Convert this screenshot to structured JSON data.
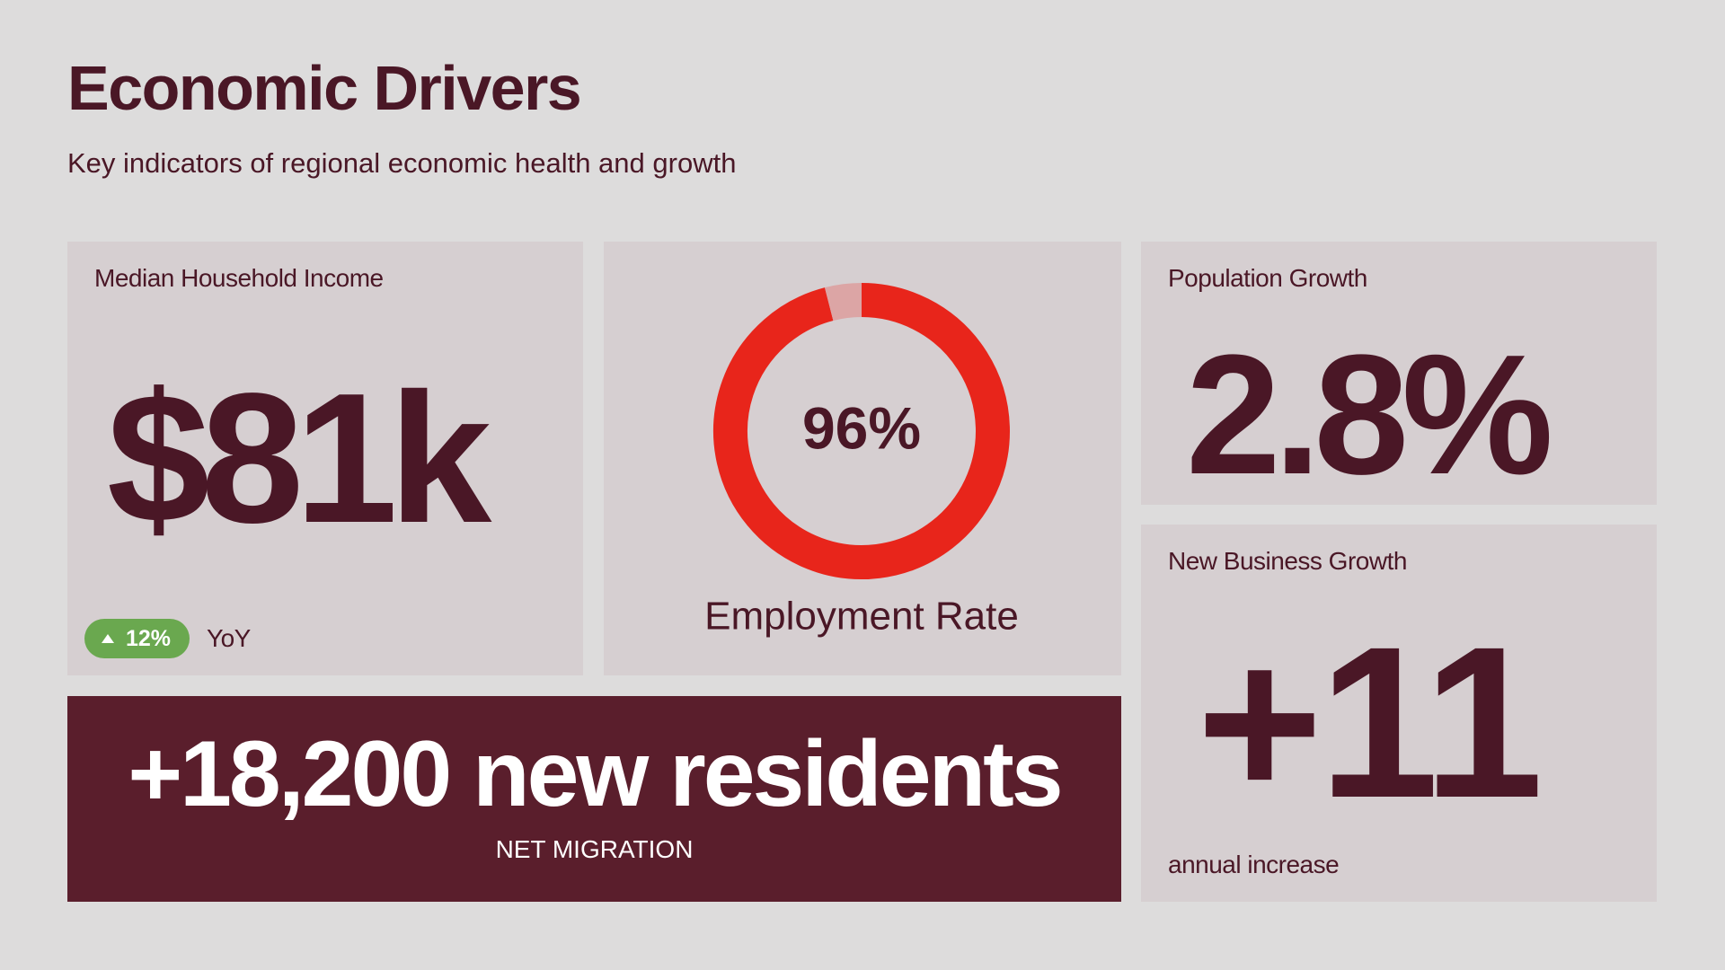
{
  "header": {
    "title": "Economic Drivers",
    "subtitle": "Key indicators of regional economic health and growth"
  },
  "income": {
    "label": "Median Household Income",
    "value_text": "$81k",
    "change": "12%",
    "change_period": "YoY"
  },
  "employment": {
    "label": "Employment Rate",
    "value": 96,
    "value_label": "96%"
  },
  "population": {
    "label": "Population Growth",
    "value_text": "2.8%"
  },
  "business": {
    "label": "New Business Growth",
    "value_text": "+11",
    "note": "annual increase"
  },
  "migration": {
    "headline": "+18,200 new residents",
    "label": "NET MIGRATION"
  }
}
